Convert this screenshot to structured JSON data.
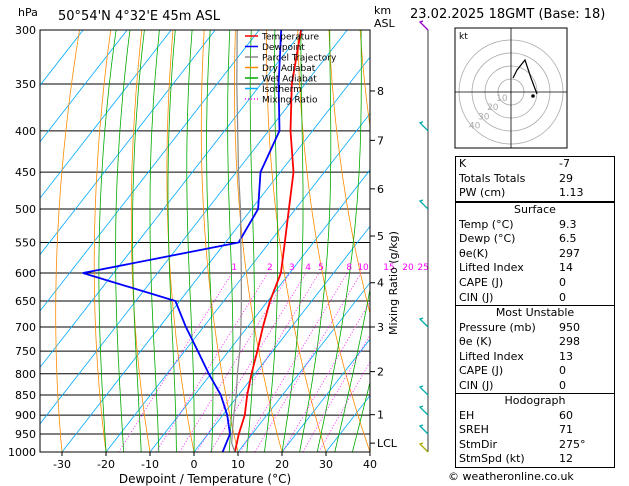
{
  "header": {
    "location": "50°54'N 4°32'E 45m ASL",
    "timestamp": "23.02.2025 18GMT (Base: 18)",
    "p_unit": "hPa",
    "km_unit_top": "km",
    "km_unit_bottom": "ASL"
  },
  "chart_data": {
    "type": "skew-t",
    "xlabel": "Dewpoint / Temperature (°C)",
    "ylabel_right": "Mixing Ratio (g/kg)",
    "pressure_levels": [
      300,
      350,
      400,
      450,
      500,
      550,
      600,
      650,
      700,
      750,
      800,
      850,
      900,
      950,
      1000
    ],
    "temperature_ticks": [
      -30,
      -20,
      -10,
      0,
      10,
      20,
      30,
      40
    ],
    "xlim": [
      -35,
      40
    ],
    "ylim_hpa": [
      1000,
      300
    ],
    "km_ticks": [
      {
        "label": "8",
        "p": 357
      },
      {
        "label": "7",
        "p": 411
      },
      {
        "label": "6",
        "p": 472
      },
      {
        "label": "5",
        "p": 540
      },
      {
        "label": "4",
        "p": 617
      },
      {
        "label": "3",
        "p": 700
      },
      {
        "label": "2",
        "p": 795
      },
      {
        "label": "1",
        "p": 899
      },
      {
        "label": "LCL",
        "p": 975
      }
    ],
    "mixing_ratio_labels": [
      "1",
      "2",
      "3",
      "4",
      "5",
      "8",
      "10",
      "15",
      "20",
      "25"
    ],
    "mixing_ratio_values": [
      1,
      2,
      3,
      4,
      5,
      8,
      10,
      15,
      20,
      25
    ],
    "legend": [
      {
        "name": "Temperature",
        "color": "#ff0000",
        "style": "solid"
      },
      {
        "name": "Dewpoint",
        "color": "#0000ff",
        "style": "solid"
      },
      {
        "name": "Parcel Trajectory",
        "color": "#888888",
        "style": "solid"
      },
      {
        "name": "Dry Adiabat",
        "color": "#ff8c00",
        "style": "solid"
      },
      {
        "name": "Wet Adiabat",
        "color": "#00aa00",
        "style": "solid"
      },
      {
        "name": "Isotherm",
        "color": "#00aaff",
        "style": "solid"
      },
      {
        "name": "Mixing Ratio",
        "color": "#ff00ff",
        "style": "dotted"
      }
    ],
    "series": [
      {
        "name": "Temperature",
        "color": "#ff0000",
        "points": [
          [
            1000,
            9.3
          ],
          [
            950,
            7.0
          ],
          [
            900,
            5.0
          ],
          [
            850,
            2.0
          ],
          [
            800,
            -0.8
          ],
          [
            750,
            -3.5
          ],
          [
            700,
            -6.5
          ],
          [
            650,
            -9.5
          ],
          [
            600,
            -12.0
          ],
          [
            550,
            -16.5
          ],
          [
            500,
            -21.5
          ],
          [
            450,
            -27.0
          ],
          [
            400,
            -35.0
          ],
          [
            350,
            -43.0
          ],
          [
            300,
            -50.5
          ]
        ]
      },
      {
        "name": "Dewpoint",
        "color": "#0000ff",
        "points": [
          [
            1000,
            6.5
          ],
          [
            950,
            5.0
          ],
          [
            900,
            1.0
          ],
          [
            850,
            -4.0
          ],
          [
            800,
            -10.5
          ],
          [
            750,
            -17.0
          ],
          [
            700,
            -24.0
          ],
          [
            650,
            -31.0
          ],
          [
            600,
            -57.0
          ],
          [
            550,
            -27.0
          ],
          [
            500,
            -28.5
          ],
          [
            450,
            -34.5
          ],
          [
            400,
            -37.5
          ],
          [
            350,
            -46.0
          ],
          [
            300,
            -55.0
          ]
        ]
      },
      {
        "name": "Parcel Trajectory",
        "color": "#888888",
        "points": [
          [
            1000,
            9.3
          ],
          [
            975,
            7.0
          ],
          [
            950,
            5.5
          ],
          [
            900,
            2.5
          ],
          [
            850,
            -0.5
          ],
          [
            800,
            -4.0
          ],
          [
            750,
            -7.5
          ],
          [
            700,
            -11.5
          ],
          [
            650,
            -16.0
          ],
          [
            600,
            -21.0
          ],
          [
            550,
            -26.5
          ],
          [
            500,
            -32.5
          ],
          [
            450,
            -39.5
          ],
          [
            400,
            -47.0
          ],
          [
            350,
            -55.5
          ],
          [
            300,
            -65.0
          ]
        ]
      }
    ],
    "wind_barbs": [
      {
        "p": 300,
        "color": "#9900cc"
      },
      {
        "p": 400,
        "color": "#00aaaa"
      },
      {
        "p": 500,
        "color": "#00aaaa"
      },
      {
        "p": 700,
        "color": "#00aaaa"
      },
      {
        "p": 850,
        "color": "#00aaaa"
      },
      {
        "p": 900,
        "color": "#00aaaa"
      },
      {
        "p": 950,
        "color": "#00aaaa"
      },
      {
        "p": 1000,
        "color": "#aaaa00"
      }
    ]
  },
  "hodograph": {
    "unit_label": "kt",
    "ring_labels": [
      "10",
      "20",
      "30",
      "40"
    ]
  },
  "indices": [
    {
      "label": "K",
      "value": "-7"
    },
    {
      "label": "Totals Totals",
      "value": "29"
    },
    {
      "label": "PW (cm)",
      "value": "1.13"
    }
  ],
  "surface": {
    "title": "Surface",
    "rows": [
      {
        "label": "Temp (°C)",
        "value": "9.3"
      },
      {
        "label": "Dewp (°C)",
        "value": "6.5"
      },
      {
        "label": "θe(K)",
        "value": "297"
      },
      {
        "label": "Lifted Index",
        "value": "14"
      },
      {
        "label": "CAPE (J)",
        "value": "0"
      },
      {
        "label": "CIN (J)",
        "value": "0"
      }
    ]
  },
  "most_unstable": {
    "title": "Most Unstable",
    "rows": [
      {
        "label": "Pressure (mb)",
        "value": "950"
      },
      {
        "label": "θe (K)",
        "value": "298"
      },
      {
        "label": "Lifted Index",
        "value": "13"
      },
      {
        "label": "CAPE (J)",
        "value": "0"
      },
      {
        "label": "CIN (J)",
        "value": "0"
      }
    ]
  },
  "hodograph_table": {
    "title": "Hodograph",
    "rows": [
      {
        "label": "EH",
        "value": "60"
      },
      {
        "label": "SREH",
        "value": "71"
      },
      {
        "label": "StmDir",
        "value": "275°"
      },
      {
        "label": "StmSpd (kt)",
        "value": "12"
      }
    ]
  },
  "footer": "© weatheronline.co.uk"
}
